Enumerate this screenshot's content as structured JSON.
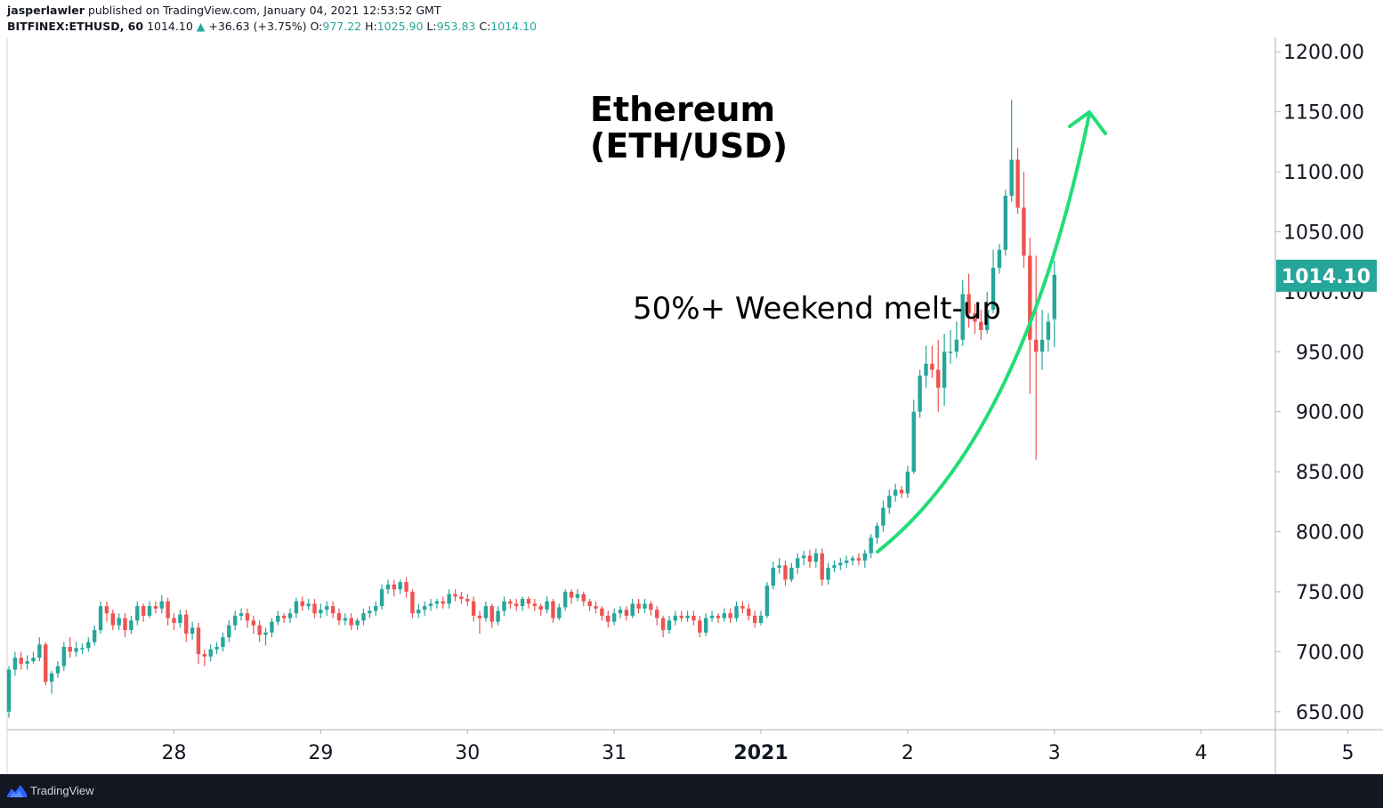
{
  "header": {
    "author": "jasperlawler",
    "published": "published on TradingView.com, January 04, 2021 12:53:52 GMT",
    "symbol": "BITFINEX:ETHUSD, 60",
    "last": "1014.10",
    "change": "+36.63 (+3.75%)",
    "o_label": "O:",
    "o_value": "977.22",
    "h_label": "H:",
    "h_value": "1025.90",
    "l_label": "L:",
    "l_value": "953.83",
    "c_label": "C:",
    "c_value": "1014.10"
  },
  "colors": {
    "up": "#26a69a",
    "down": "#ef5350",
    "arrow": "#22dd77",
    "price_tag": "#26a69a",
    "footer": "#131722"
  },
  "footer": {
    "brand": "TradingView",
    "logo_icon": "tradingview-logo-icon"
  },
  "chart_data": {
    "type": "candlestick",
    "title": "Ethereum\n(ETH/USD)",
    "annotation": "50%+ Weekend melt-up",
    "current_price_label": "1014.10",
    "y_ticks": [
      "650.00",
      "700.00",
      "750.00",
      "800.00",
      "850.00",
      "900.00",
      "950.00",
      "1000.00",
      "1050.00",
      "1100.00",
      "1150.00",
      "1200.00"
    ],
    "x_ticks": [
      {
        "label": "28",
        "t": 27
      },
      {
        "label": "29",
        "t": 51
      },
      {
        "label": "30",
        "t": 75
      },
      {
        "label": "31",
        "t": 99
      },
      {
        "label": "2021",
        "t": 123,
        "bold": true
      },
      {
        "label": "2",
        "t": 147
      },
      {
        "label": "3",
        "t": 171
      },
      {
        "label": "4",
        "t": 195
      },
      {
        "label": "5",
        "t": 219
      }
    ],
    "ylim": [
      635,
      1212
    ],
    "grid": false,
    "candles": [
      [
        650,
        685,
        645,
        688
      ],
      [
        685,
        695,
        680,
        700
      ],
      [
        695,
        690,
        685,
        700
      ],
      [
        690,
        692,
        685,
        697
      ],
      [
        692,
        695,
        690,
        700
      ],
      [
        695,
        706,
        692,
        712
      ],
      [
        706,
        675,
        672,
        708
      ],
      [
        675,
        682,
        665,
        684
      ],
      [
        682,
        688,
        678,
        692
      ],
      [
        688,
        704,
        684,
        708
      ],
      [
        704,
        700,
        695,
        712
      ],
      [
        700,
        703,
        696,
        708
      ],
      [
        703,
        703,
        698,
        707
      ],
      [
        703,
        708,
        700,
        712
      ],
      [
        708,
        718,
        705,
        722
      ],
      [
        718,
        738,
        715,
        742
      ],
      [
        738,
        732,
        725,
        742
      ],
      [
        732,
        722,
        718,
        735
      ],
      [
        722,
        728,
        718,
        732
      ],
      [
        728,
        718,
        712,
        732
      ],
      [
        718,
        726,
        715,
        730
      ],
      [
        726,
        738,
        722,
        742
      ],
      [
        738,
        730,
        725,
        740
      ],
      [
        730,
        738,
        728,
        742
      ],
      [
        738,
        736,
        732,
        742
      ],
      [
        736,
        742,
        732,
        747
      ],
      [
        742,
        728,
        722,
        745
      ],
      [
        728,
        724,
        718,
        732
      ],
      [
        724,
        731,
        720,
        735
      ],
      [
        731,
        715,
        708,
        735
      ],
      [
        715,
        720,
        710,
        725
      ],
      [
        720,
        698,
        690,
        724
      ],
      [
        698,
        696,
        688,
        702
      ],
      [
        696,
        702,
        692,
        706
      ],
      [
        702,
        704,
        698,
        708
      ],
      [
        704,
        712,
        700,
        716
      ],
      [
        712,
        722,
        708,
        726
      ],
      [
        722,
        730,
        718,
        734
      ],
      [
        730,
        732,
        726,
        736
      ],
      [
        732,
        726,
        720,
        736
      ],
      [
        726,
        722,
        715,
        730
      ],
      [
        722,
        714,
        708,
        726
      ],
      [
        714,
        716,
        705,
        720
      ],
      [
        716,
        725,
        712,
        728
      ],
      [
        725,
        730,
        722,
        734
      ],
      [
        730,
        728,
        724,
        732
      ],
      [
        728,
        732,
        724,
        736
      ],
      [
        732,
        742,
        728,
        745
      ],
      [
        742,
        738,
        734,
        746
      ],
      [
        738,
        740,
        735,
        744
      ],
      [
        740,
        732,
        728,
        744
      ],
      [
        732,
        735,
        728,
        740
      ],
      [
        735,
        738,
        730,
        742
      ],
      [
        738,
        732,
        728,
        742
      ],
      [
        732,
        726,
        722,
        736
      ],
      [
        726,
        728,
        722,
        732
      ],
      [
        728,
        722,
        718,
        732
      ],
      [
        722,
        726,
        718,
        728
      ],
      [
        726,
        732,
        722,
        736
      ],
      [
        732,
        734,
        728,
        738
      ],
      [
        734,
        738,
        730,
        742
      ],
      [
        738,
        752,
        735,
        756
      ],
      [
        752,
        756,
        748,
        760
      ],
      [
        756,
        752,
        746,
        760
      ],
      [
        752,
        758,
        748,
        760
      ],
      [
        758,
        750,
        745,
        762
      ],
      [
        750,
        732,
        728,
        752
      ],
      [
        732,
        735,
        728,
        740
      ],
      [
        735,
        738,
        730,
        742
      ],
      [
        738,
        740,
        734,
        744
      ],
      [
        740,
        742,
        736,
        744
      ],
      [
        742,
        740,
        736,
        746
      ],
      [
        740,
        748,
        736,
        752
      ],
      [
        748,
        746,
        742,
        752
      ],
      [
        746,
        744,
        740,
        750
      ],
      [
        744,
        742,
        738,
        748
      ],
      [
        742,
        730,
        725,
        746
      ],
      [
        730,
        728,
        715,
        734
      ],
      [
        728,
        738,
        725,
        742
      ],
      [
        738,
        725,
        720,
        740
      ],
      [
        725,
        734,
        722,
        738
      ],
      [
        734,
        742,
        730,
        746
      ],
      [
        742,
        740,
        736,
        744
      ],
      [
        740,
        738,
        734,
        744
      ],
      [
        738,
        744,
        734,
        746
      ],
      [
        744,
        740,
        736,
        746
      ],
      [
        740,
        738,
        734,
        744
      ],
      [
        738,
        735,
        730,
        740
      ],
      [
        735,
        742,
        732,
        746
      ],
      [
        742,
        728,
        724,
        744
      ],
      [
        728,
        737,
        726,
        740
      ],
      [
        737,
        750,
        734,
        752
      ],
      [
        750,
        745,
        740,
        752
      ],
      [
        745,
        748,
        742,
        752
      ],
      [
        748,
        742,
        738,
        750
      ],
      [
        742,
        738,
        734,
        744
      ],
      [
        738,
        736,
        732,
        742
      ],
      [
        736,
        730,
        726,
        738
      ],
      [
        730,
        725,
        720,
        734
      ],
      [
        725,
        732,
        722,
        736
      ],
      [
        732,
        735,
        728,
        738
      ],
      [
        735,
        730,
        726,
        738
      ],
      [
        730,
        740,
        728,
        744
      ],
      [
        740,
        736,
        732,
        744
      ],
      [
        736,
        740,
        732,
        744
      ],
      [
        740,
        735,
        730,
        742
      ],
      [
        735,
        728,
        722,
        738
      ],
      [
        728,
        718,
        712,
        730
      ],
      [
        718,
        726,
        715,
        730
      ],
      [
        726,
        730,
        722,
        734
      ],
      [
        730,
        728,
        725,
        734
      ],
      [
        728,
        730,
        725,
        734
      ],
      [
        730,
        726,
        722,
        734
      ],
      [
        726,
        716,
        712,
        730
      ],
      [
        716,
        728,
        713,
        732
      ],
      [
        728,
        730,
        725,
        734
      ],
      [
        730,
        728,
        724,
        732
      ],
      [
        728,
        732,
        725,
        736
      ],
      [
        732,
        728,
        724,
        736
      ],
      [
        728,
        738,
        725,
        742
      ],
      [
        738,
        736,
        732,
        742
      ],
      [
        736,
        730,
        726,
        740
      ],
      [
        730,
        724,
        720,
        734
      ],
      [
        724,
        730,
        722,
        734
      ],
      [
        730,
        755,
        728,
        758
      ],
      [
        755,
        770,
        752,
        775
      ],
      [
        770,
        772,
        765,
        778
      ],
      [
        772,
        760,
        755,
        776
      ],
      [
        760,
        770,
        758,
        774
      ],
      [
        770,
        778,
        765,
        782
      ],
      [
        778,
        780,
        772,
        784
      ],
      [
        780,
        775,
        770,
        785
      ],
      [
        775,
        782,
        770,
        786
      ],
      [
        782,
        760,
        755,
        786
      ],
      [
        760,
        770,
        756,
        774
      ],
      [
        770,
        772,
        766,
        776
      ],
      [
        772,
        774,
        768,
        778
      ],
      [
        774,
        776,
        770,
        780
      ],
      [
        776,
        778,
        772,
        780
      ],
      [
        778,
        776,
        772,
        782
      ],
      [
        776,
        782,
        770,
        785
      ],
      [
        782,
        795,
        778,
        798
      ],
      [
        795,
        805,
        790,
        808
      ],
      [
        805,
        820,
        800,
        826
      ],
      [
        820,
        830,
        815,
        835
      ],
      [
        830,
        835,
        825,
        840
      ],
      [
        835,
        832,
        828,
        838
      ],
      [
        832,
        850,
        828,
        855
      ],
      [
        850,
        900,
        848,
        910
      ],
      [
        900,
        930,
        895,
        935
      ],
      [
        930,
        940,
        920,
        955
      ],
      [
        940,
        935,
        928,
        955
      ],
      [
        935,
        920,
        900,
        960
      ],
      [
        920,
        950,
        905,
        965
      ],
      [
        950,
        950,
        940,
        968
      ],
      [
        950,
        960,
        945,
        975
      ],
      [
        960,
        998,
        955,
        1010
      ],
      [
        998,
        982,
        970,
        1015
      ],
      [
        982,
        975,
        965,
        990
      ],
      [
        975,
        968,
        960,
        985
      ],
      [
        968,
        985,
        965,
        1000
      ],
      [
        985,
        1020,
        982,
        1035
      ],
      [
        1020,
        1035,
        1015,
        1040
      ],
      [
        1035,
        1080,
        1030,
        1085
      ],
      [
        1080,
        1110,
        1075,
        1160
      ],
      [
        1110,
        1070,
        1065,
        1120
      ],
      [
        1070,
        1030,
        1020,
        1100
      ],
      [
        1030,
        960,
        915,
        1045
      ],
      [
        960,
        950,
        860,
        1030
      ],
      [
        950,
        960,
        935,
        985
      ],
      [
        960,
        975,
        950,
        982
      ],
      [
        977.22,
        1014.1,
        953.83,
        1025.9
      ]
    ]
  }
}
